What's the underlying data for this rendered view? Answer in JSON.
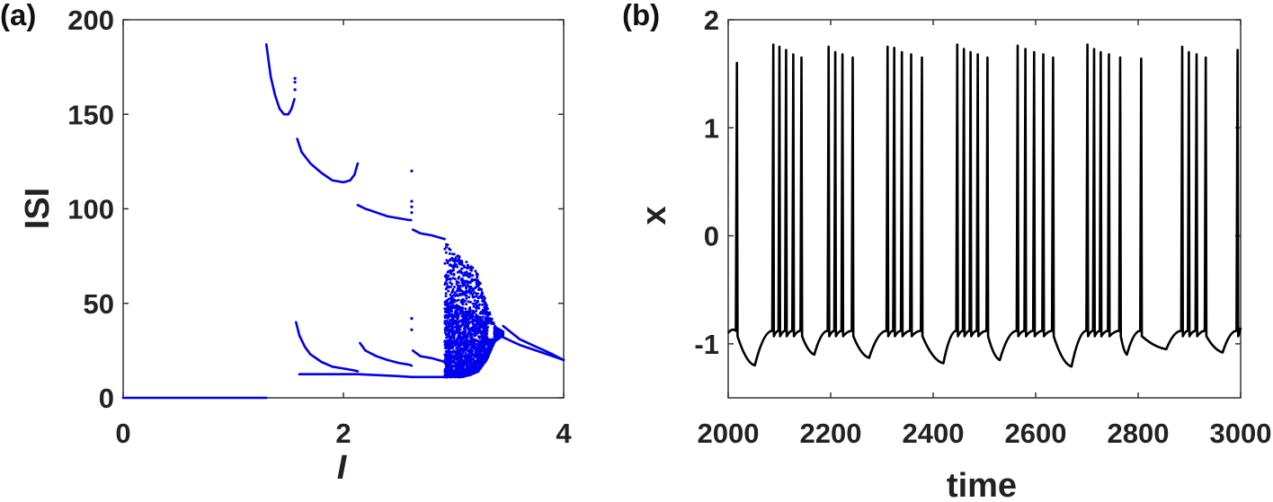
{
  "chart_data": [
    {
      "panel_label": "(a)",
      "type": "scatter",
      "xlabel": "I",
      "ylabel": "ISI",
      "xlim": [
        0,
        4
      ],
      "ylim": [
        0,
        200
      ],
      "xticks": [
        0,
        2,
        4
      ],
      "yticks": [
        0,
        50,
        100,
        150,
        200
      ],
      "color": "#0000ee",
      "grid": false,
      "series": [
        {
          "x": [
            0,
            0.3,
            0.6,
            0.9,
            1.2,
            1.3
          ],
          "y": [
            0,
            0,
            0,
            0,
            0,
            0
          ]
        },
        {
          "x": [
            1.3,
            1.34,
            1.38,
            1.42,
            1.46,
            1.5,
            1.53,
            1.555
          ],
          "y": [
            187,
            170,
            160,
            153,
            150,
            150,
            153,
            158
          ]
        },
        {
          "x": [
            1.58,
            1.62,
            1.7,
            1.8,
            1.9,
            2.0,
            2.06,
            2.1,
            2.13
          ],
          "y": [
            137,
            130,
            124,
            119,
            115,
            114,
            115,
            118,
            124
          ]
        },
        {
          "x": [
            2.13,
            2.2,
            2.3,
            2.4,
            2.5,
            2.6,
            2.615
          ],
          "y": [
            102,
            100,
            98,
            96,
            95,
            94,
            94
          ]
        },
        {
          "x": [
            2.63,
            2.7,
            2.8,
            2.92
          ],
          "y": [
            89,
            87,
            86,
            84
          ]
        },
        {
          "x": [
            1.57,
            1.6,
            1.65,
            1.7,
            1.8,
            1.9,
            2.0,
            2.1,
            2.13
          ],
          "y": [
            40,
            33,
            27,
            23,
            19,
            16.5,
            15.5,
            14.5,
            14
          ]
        },
        {
          "x": [
            2.15,
            2.2,
            2.3,
            2.4,
            2.5,
            2.6,
            2.62
          ],
          "y": [
            29,
            25,
            22,
            20,
            18.5,
            17.5,
            17
          ]
        },
        {
          "x": [
            2.63,
            2.7,
            2.8,
            2.92
          ],
          "y": [
            25,
            22,
            21,
            19
          ]
        },
        {
          "x": [
            1.6,
            1.8,
            2.0,
            2.13,
            2.3,
            2.5,
            2.62,
            2.8,
            2.95
          ],
          "y": [
            12.5,
            12.5,
            12.5,
            12.5,
            12,
            11.5,
            11,
            11,
            11
          ]
        },
        {
          "x": [
            3.45,
            3.6,
            3.75,
            3.9,
            4.0
          ],
          "y": [
            32,
            28,
            25,
            22,
            20
          ]
        },
        {
          "x": [
            3.45,
            3.6,
            3.75,
            3.9,
            4.0
          ],
          "y": [
            38,
            31,
            27,
            23,
            20
          ]
        }
      ],
      "isolated_points": {
        "x": [
          1.56,
          1.56,
          1.56,
          2.62,
          2.62,
          2.62,
          2.62,
          2.62,
          2.62
        ],
        "y": [
          163,
          167,
          169,
          120,
          104,
          101,
          98,
          42,
          36
        ]
      },
      "chaotic_band": {
        "x_range": [
          2.92,
          3.45
        ],
        "upper": [
          84,
          78,
          74,
          72,
          65,
          50,
          38,
          35
        ],
        "lower": [
          11,
          11,
          11,
          12,
          14,
          20,
          30,
          33
        ],
        "island": {
          "x": 3.34,
          "y": 35
        }
      }
    },
    {
      "panel_label": "(b)",
      "type": "line",
      "xlabel": "time",
      "ylabel": "x",
      "xlim": [
        2000,
        3000
      ],
      "ylim": [
        -1.5,
        2
      ],
      "xticks": [
        2000,
        2200,
        2400,
        2600,
        2800,
        3000
      ],
      "yticks": [
        -1,
        0,
        1,
        2
      ],
      "color": "#000000",
      "grid": false,
      "series": [
        {
          "spike_times": [
            2017,
            2088,
            2100,
            2113,
            2127,
            2143,
            2196,
            2209,
            2223,
            2243,
            2311,
            2324,
            2339,
            2357,
            2378,
            2447,
            2460,
            2473,
            2487,
            2506,
            2565,
            2580,
            2597,
            2615,
            2634,
            2701,
            2714,
            2727,
            2743,
            2765,
            2806,
            2886,
            2899,
            2914,
            2932,
            2994
          ],
          "spike_peaks": [
            1.6,
            1.77,
            1.75,
            1.72,
            1.68,
            1.65,
            1.75,
            1.7,
            1.68,
            1.65,
            1.75,
            1.74,
            1.7,
            1.68,
            1.65,
            1.77,
            1.73,
            1.7,
            1.68,
            1.65,
            1.76,
            1.73,
            1.7,
            1.68,
            1.65,
            1.77,
            1.73,
            1.7,
            1.68,
            1.65,
            1.64,
            1.75,
            1.7,
            1.68,
            1.65,
            1.72
          ],
          "reset_level": -0.93,
          "trough_times": [
            2052,
            2168,
            2275,
            2420,
            2530,
            2670,
            2778,
            2855,
            2965
          ],
          "trough_values": [
            -1.2,
            -1.1,
            -1.13,
            -1.18,
            -1.15,
            -1.21,
            -1.1,
            -1.05,
            -1.08
          ]
        }
      ]
    }
  ]
}
